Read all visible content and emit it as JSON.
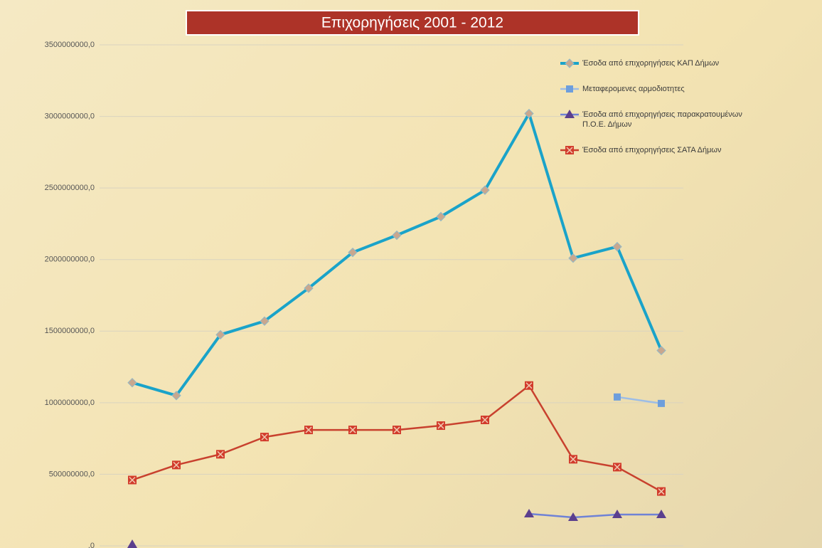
{
  "chart_data": {
    "type": "line",
    "title": "Επιχορηγήσεις 2001 - 2012",
    "categories": [
      null,
      null,
      null,
      null,
      null,
      null,
      null,
      null,
      null,
      null,
      null,
      null,
      null
    ],
    "series": [
      {
        "name": "Έσοδα από επιχορηγήσεις ΚΑΠ Δήμων",
        "color": "#1aa3c9",
        "marker": "diamond",
        "marker_color": "#c9a78e",
        "values": [
          1140000000,
          1050000000,
          1475000000,
          1570000000,
          1800000000,
          2050000000,
          2170000000,
          2300000000,
          2485000000,
          3020000000,
          2010000000,
          2090000000,
          1365000000
        ]
      },
      {
        "name": "Μεταφερομενες αρμοδιοτητες",
        "color": "#9dbde6",
        "marker": "square",
        "marker_color": "#6d9edc",
        "values": [
          null,
          null,
          null,
          null,
          null,
          null,
          null,
          null,
          null,
          null,
          null,
          1040000000,
          995000000
        ]
      },
      {
        "name": "Έσοδα από επιχορηγήσεις παρακρατουμένων Π.Ο.Ε. Δήμων",
        "color": "#6f82d6",
        "marker": "triangle",
        "marker_color": "#5b3f8e",
        "values": [
          10000000,
          null,
          null,
          null,
          null,
          null,
          null,
          null,
          null,
          224000000,
          199000000,
          219000000,
          219000000
        ]
      },
      {
        "name": "Έσοδα από επιχορηγήσεις ΣΑΤΑ Δήμων",
        "color": "#c8412e",
        "marker": "xsquare",
        "marker_color": "#d23b2c",
        "values": [
          460000000,
          565000000,
          640000000,
          760000000,
          810000000,
          810000000,
          810000000,
          840000000,
          880000000,
          1120000000,
          605000000,
          550000000,
          380000000
        ]
      }
    ],
    "ylim": [
      0,
      3500000000
    ],
    "yticks": [
      {
        "value": 0,
        "label": ",0"
      },
      {
        "value": 500000000,
        "label": "500000000,0"
      },
      {
        "value": 1000000000,
        "label": "1000000000,0"
      },
      {
        "value": 1500000000,
        "label": "1500000000,0"
      },
      {
        "value": 2000000000,
        "label": "2000000000,0"
      },
      {
        "value": 2500000000,
        "label": "2500000000,0"
      },
      {
        "value": 3000000000,
        "label": "3000000000,0"
      },
      {
        "value": 3500000000,
        "label": "3500000000,0"
      }
    ],
    "grid": true,
    "legend": "top-right"
  }
}
